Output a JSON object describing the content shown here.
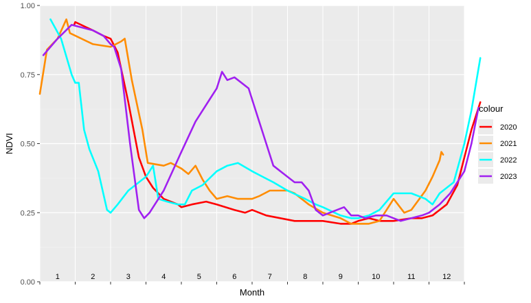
{
  "chart_data": {
    "type": "line",
    "title": "",
    "xlabel": "Month",
    "ylabel": "NDVI",
    "xlim": [
      0,
      12
    ],
    "ylim": [
      0,
      1
    ],
    "y_ticks": [
      "0.00",
      "0.25",
      "0.50",
      "0.75",
      "1.00"
    ],
    "month_labels": [
      "1",
      "2",
      "3",
      "4",
      "5",
      "6",
      "7",
      "8",
      "9",
      "10",
      "11",
      "12"
    ],
    "grid": true,
    "legend": {
      "title": "colour",
      "position": "right"
    },
    "series": [
      {
        "name": "2020",
        "color": "#ff0000",
        "points": [
          [
            0.97,
            0.93
          ],
          [
            1.0,
            0.94
          ],
          [
            1.5,
            0.91
          ],
          [
            1.8,
            0.89
          ],
          [
            2.0,
            0.88
          ],
          [
            2.2,
            0.83
          ],
          [
            2.5,
            0.65
          ],
          [
            2.8,
            0.45
          ],
          [
            3.0,
            0.38
          ],
          [
            3.2,
            0.34
          ],
          [
            3.5,
            0.3
          ],
          [
            3.9,
            0.28
          ],
          [
            4.0,
            0.27
          ],
          [
            4.3,
            0.28
          ],
          [
            4.7,
            0.29
          ],
          [
            5.0,
            0.28
          ],
          [
            5.5,
            0.26
          ],
          [
            5.8,
            0.25
          ],
          [
            6.0,
            0.26
          ],
          [
            6.4,
            0.24
          ],
          [
            6.8,
            0.23
          ],
          [
            7.2,
            0.22
          ],
          [
            7.6,
            0.22
          ],
          [
            8.0,
            0.22
          ],
          [
            8.5,
            0.21
          ],
          [
            8.8,
            0.21
          ],
          [
            9.0,
            0.22
          ],
          [
            9.3,
            0.23
          ],
          [
            9.6,
            0.22
          ],
          [
            10.0,
            0.22
          ],
          [
            10.5,
            0.23
          ],
          [
            10.8,
            0.23
          ],
          [
            11.1,
            0.24
          ],
          [
            11.5,
            0.28
          ],
          [
            11.8,
            0.35
          ],
          [
            12.0,
            0.45
          ],
          [
            12.2,
            0.55
          ],
          [
            12.45,
            0.65
          ]
        ]
      },
      {
        "name": "2021",
        "color": "#ff8c00",
        "points": [
          [
            0.0,
            0.68
          ],
          [
            0.2,
            0.84
          ],
          [
            0.5,
            0.88
          ],
          [
            0.75,
            0.95
          ],
          [
            0.85,
            0.9
          ],
          [
            1.5,
            0.86
          ],
          [
            2.0,
            0.85
          ],
          [
            2.3,
            0.87
          ],
          [
            2.4,
            0.88
          ],
          [
            2.6,
            0.73
          ],
          [
            2.9,
            0.55
          ],
          [
            3.05,
            0.43
          ],
          [
            3.5,
            0.42
          ],
          [
            3.7,
            0.43
          ],
          [
            4.0,
            0.41
          ],
          [
            4.2,
            0.39
          ],
          [
            4.4,
            0.42
          ],
          [
            4.6,
            0.37
          ],
          [
            4.8,
            0.33
          ],
          [
            5.0,
            0.3
          ],
          [
            5.3,
            0.31
          ],
          [
            5.6,
            0.3
          ],
          [
            6.0,
            0.3
          ],
          [
            6.2,
            0.31
          ],
          [
            6.5,
            0.33
          ],
          [
            6.8,
            0.33
          ],
          [
            7.0,
            0.33
          ],
          [
            7.2,
            0.32
          ],
          [
            7.6,
            0.28
          ],
          [
            8.0,
            0.25
          ],
          [
            8.5,
            0.23
          ],
          [
            8.8,
            0.21
          ],
          [
            9.0,
            0.21
          ],
          [
            9.3,
            0.21
          ],
          [
            9.6,
            0.22
          ],
          [
            9.9,
            0.28
          ],
          [
            10.0,
            0.3
          ],
          [
            10.3,
            0.25
          ],
          [
            10.5,
            0.26
          ],
          [
            10.9,
            0.33
          ],
          [
            11.1,
            0.38
          ],
          [
            11.3,
            0.44
          ],
          [
            11.35,
            0.47
          ],
          [
            11.4,
            0.46
          ]
        ]
      },
      {
        "name": "2022",
        "color": "#00ffff",
        "points": [
          [
            0.3,
            0.95
          ],
          [
            0.6,
            0.88
          ],
          [
            0.9,
            0.75
          ],
          [
            1.0,
            0.72
          ],
          [
            1.1,
            0.72
          ],
          [
            1.25,
            0.55
          ],
          [
            1.4,
            0.48
          ],
          [
            1.65,
            0.4
          ],
          [
            1.9,
            0.26
          ],
          [
            2.0,
            0.25
          ],
          [
            2.2,
            0.28
          ],
          [
            2.5,
            0.33
          ],
          [
            2.9,
            0.37
          ],
          [
            3.0,
            0.38
          ],
          [
            3.1,
            0.4
          ],
          [
            3.2,
            0.42
          ],
          [
            3.35,
            0.3
          ],
          [
            3.6,
            0.29
          ],
          [
            3.9,
            0.28
          ],
          [
            4.1,
            0.28
          ],
          [
            4.3,
            0.33
          ],
          [
            4.6,
            0.35
          ],
          [
            5.0,
            0.4
          ],
          [
            5.3,
            0.42
          ],
          [
            5.6,
            0.43
          ],
          [
            6.0,
            0.4
          ],
          [
            6.3,
            0.38
          ],
          [
            6.6,
            0.36
          ],
          [
            7.0,
            0.33
          ],
          [
            7.5,
            0.3
          ],
          [
            7.8,
            0.28
          ],
          [
            8.0,
            0.27
          ],
          [
            8.5,
            0.24
          ],
          [
            8.8,
            0.23
          ],
          [
            9.0,
            0.23
          ],
          [
            9.3,
            0.24
          ],
          [
            9.6,
            0.26
          ],
          [
            10.0,
            0.32
          ],
          [
            10.5,
            0.32
          ],
          [
            10.9,
            0.3
          ],
          [
            11.1,
            0.28
          ],
          [
            11.3,
            0.32
          ],
          [
            11.7,
            0.36
          ],
          [
            12.0,
            0.5
          ],
          [
            12.2,
            0.62
          ],
          [
            12.45,
            0.81
          ]
        ]
      },
      {
        "name": "2023",
        "color": "#a020f0",
        "points": [
          [
            0.1,
            0.82
          ],
          [
            0.5,
            0.88
          ],
          [
            0.9,
            0.93
          ],
          [
            1.2,
            0.92
          ],
          [
            1.5,
            0.91
          ],
          [
            1.8,
            0.89
          ],
          [
            2.0,
            0.86
          ],
          [
            2.1,
            0.85
          ],
          [
            2.3,
            0.77
          ],
          [
            2.55,
            0.5
          ],
          [
            2.8,
            0.26
          ],
          [
            2.95,
            0.23
          ],
          [
            3.1,
            0.25
          ],
          [
            3.5,
            0.33
          ],
          [
            4.0,
            0.47
          ],
          [
            4.4,
            0.58
          ],
          [
            4.8,
            0.66
          ],
          [
            5.0,
            0.7
          ],
          [
            5.15,
            0.76
          ],
          [
            5.3,
            0.73
          ],
          [
            5.5,
            0.74
          ],
          [
            5.7,
            0.72
          ],
          [
            5.9,
            0.7
          ],
          [
            6.05,
            0.64
          ],
          [
            6.2,
            0.58
          ],
          [
            6.4,
            0.5
          ],
          [
            6.6,
            0.42
          ],
          [
            6.8,
            0.4
          ],
          [
            7.0,
            0.38
          ],
          [
            7.2,
            0.36
          ],
          [
            7.4,
            0.36
          ],
          [
            7.6,
            0.33
          ],
          [
            7.8,
            0.26
          ],
          [
            8.0,
            0.24
          ],
          [
            8.4,
            0.26
          ],
          [
            8.6,
            0.27
          ],
          [
            8.8,
            0.24
          ],
          [
            9.0,
            0.24
          ],
          [
            9.2,
            0.23
          ],
          [
            9.5,
            0.24
          ],
          [
            9.8,
            0.24
          ],
          [
            10.0,
            0.23
          ],
          [
            10.2,
            0.22
          ],
          [
            10.5,
            0.23
          ],
          [
            10.8,
            0.24
          ],
          [
            11.0,
            0.25
          ],
          [
            11.3,
            0.28
          ],
          [
            11.6,
            0.32
          ],
          [
            11.8,
            0.36
          ],
          [
            12.0,
            0.4
          ],
          [
            12.2,
            0.5
          ],
          [
            12.4,
            0.63
          ]
        ]
      }
    ]
  }
}
